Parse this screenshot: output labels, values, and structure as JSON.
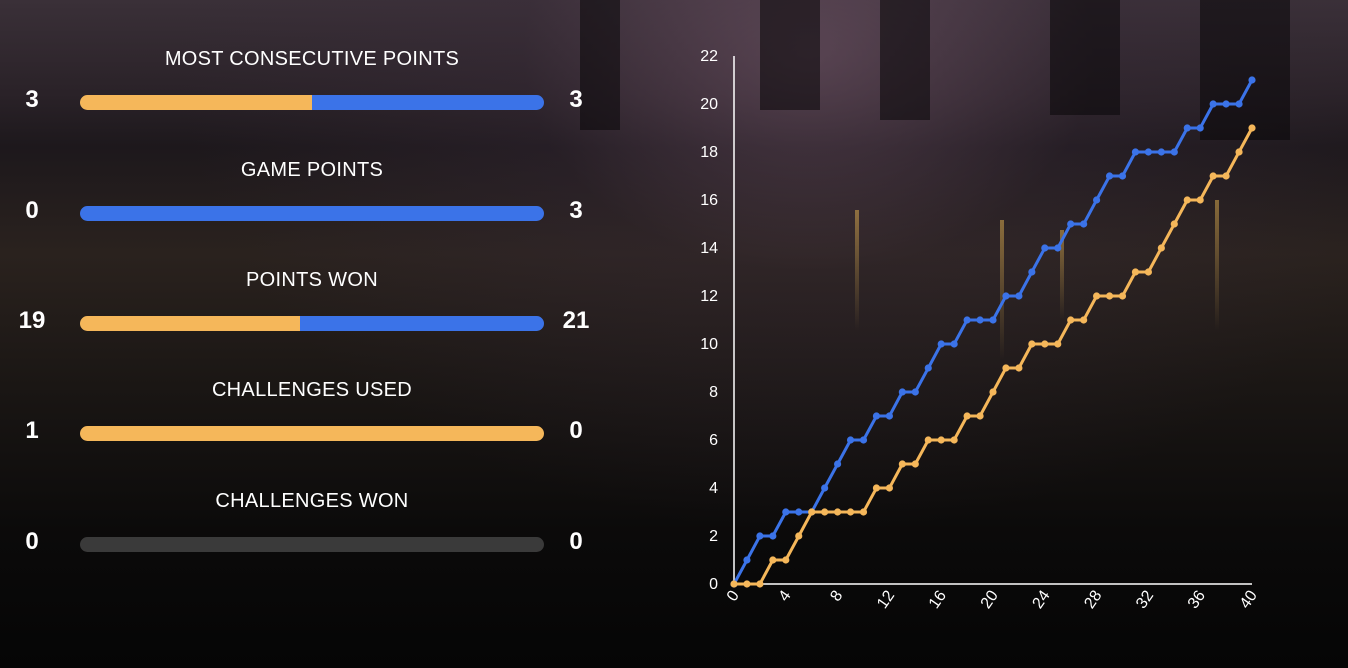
{
  "colors": {
    "player_a": "#f5b75a",
    "player_b": "#3b73e8",
    "empty_bar": "#3a3a3a"
  },
  "stats": [
    {
      "title": "MOST CONSECUTIVE POINTS",
      "left": "3",
      "right": "3",
      "left_value": 3,
      "right_value": 3
    },
    {
      "title": "GAME POINTS",
      "left": "0",
      "right": "3",
      "left_value": 0,
      "right_value": 3
    },
    {
      "title": "POINTS WON",
      "left": "19",
      "right": "21",
      "left_value": 19,
      "right_value": 21
    },
    {
      "title": "CHALLENGES USED",
      "left": "1",
      "right": "0",
      "left_value": 1,
      "right_value": 0
    },
    {
      "title": "CHALLENGES WON",
      "left": "0",
      "right": "0",
      "left_value": 0,
      "right_value": 0
    }
  ],
  "chart_data": {
    "type": "line",
    "title": "",
    "xlabel": "",
    "ylabel": "",
    "xlim": [
      0,
      40
    ],
    "ylim": [
      0,
      22
    ],
    "xticks": [
      0,
      4,
      8,
      12,
      16,
      20,
      24,
      28,
      32,
      36,
      40
    ],
    "yticks": [
      0,
      2,
      4,
      6,
      8,
      10,
      12,
      14,
      16,
      18,
      20,
      22
    ],
    "grid": false,
    "series": [
      {
        "color": "#3b73e8",
        "x": [
          0,
          1,
          2,
          3,
          4,
          5,
          6,
          7,
          8,
          9,
          10,
          11,
          12,
          13,
          14,
          15,
          16,
          17,
          18,
          19,
          20,
          21,
          22,
          23,
          24,
          25,
          26,
          27,
          28,
          29,
          30,
          31,
          32,
          33,
          34,
          35,
          36,
          37,
          38,
          39,
          40
        ],
        "y": [
          0,
          1,
          2,
          2,
          3,
          3,
          3,
          4,
          5,
          6,
          6,
          7,
          7,
          8,
          8,
          9,
          10,
          10,
          11,
          11,
          11,
          12,
          12,
          13,
          14,
          14,
          15,
          15,
          16,
          17,
          17,
          18,
          18,
          18,
          18,
          19,
          19,
          20,
          20,
          20,
          21
        ]
      },
      {
        "color": "#f5b75a",
        "x": [
          0,
          1,
          2,
          3,
          4,
          5,
          6,
          7,
          8,
          9,
          10,
          11,
          12,
          13,
          14,
          15,
          16,
          17,
          18,
          19,
          20,
          21,
          22,
          23,
          24,
          25,
          26,
          27,
          28,
          29,
          30,
          31,
          32,
          33,
          34,
          35,
          36,
          37,
          38,
          39,
          40
        ],
        "y": [
          0,
          0,
          0,
          1,
          1,
          2,
          3,
          3,
          3,
          3,
          3,
          4,
          4,
          5,
          5,
          6,
          6,
          6,
          7,
          7,
          8,
          9,
          9,
          10,
          10,
          10,
          11,
          11,
          12,
          12,
          12,
          13,
          13,
          14,
          15,
          16,
          16,
          17,
          17,
          18,
          19
        ]
      }
    ]
  }
}
